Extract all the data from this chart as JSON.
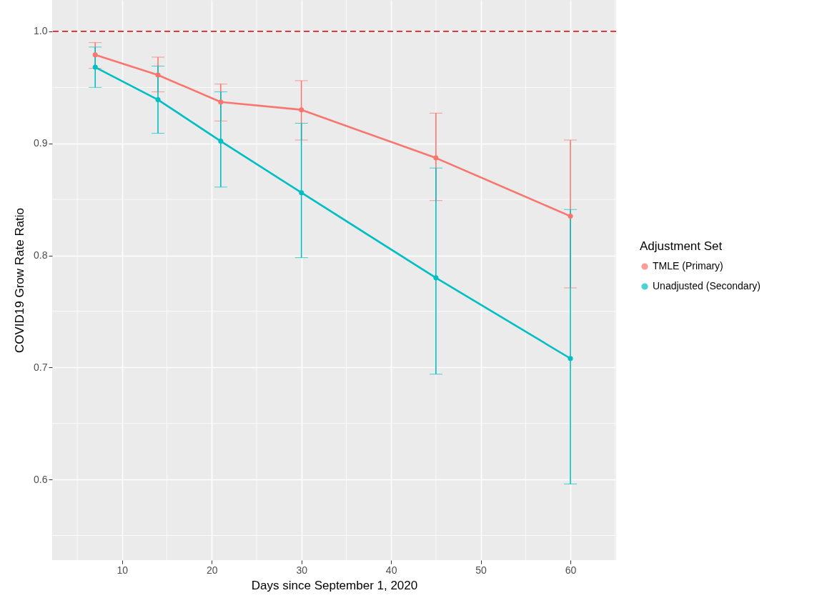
{
  "chart_data": {
    "type": "line",
    "xlabel": "Days since September 1, 2020",
    "ylabel": "COVID19 Grow Rate Ratio",
    "legend_title": "Adjustment Set",
    "x": [
      7,
      14,
      21,
      30,
      45,
      60
    ],
    "series": [
      {
        "name": "TMLE (Primary)",
        "color": "#f8766d",
        "values": [
          0.979,
          0.961,
          0.937,
          0.93,
          0.887,
          0.835
        ],
        "errors": [
          [
            0.967,
            0.99
          ],
          [
            0.946,
            0.977
          ],
          [
            0.92,
            0.953
          ],
          [
            0.903,
            0.956
          ],
          [
            0.849,
            0.927
          ],
          [
            0.771,
            0.903
          ]
        ]
      },
      {
        "name": "Unadjusted (Secondary)",
        "color": "#00bfc4",
        "values": [
          0.968,
          0.939,
          0.902,
          0.856,
          0.78,
          0.708
        ],
        "errors": [
          [
            0.95,
            0.986
          ],
          [
            0.909,
            0.969
          ],
          [
            0.861,
            0.946
          ],
          [
            0.798,
            0.918
          ],
          [
            0.694,
            0.878
          ],
          [
            0.596,
            0.841
          ]
        ]
      }
    ],
    "xlim": [
      2.2,
      65.1
    ],
    "xticks": [
      10,
      20,
      30,
      40,
      50,
      60
    ],
    "ylim": [
      0.528,
      1.028
    ],
    "yticks": [
      0.6,
      0.7,
      0.8,
      0.9,
      {
        "value": 1,
        "label": "1.0"
      }
    ],
    "ref_lines": [
      {
        "axis": "y",
        "value": 1.0,
        "color": "#e41a1c",
        "line_style": "dashed"
      }
    ],
    "grid": true,
    "legend": "right",
    "marker": "circle",
    "line_style": "solid"
  }
}
